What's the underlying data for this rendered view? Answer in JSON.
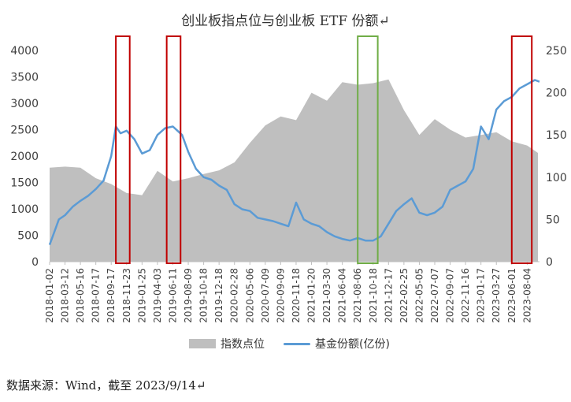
{
  "chart_data": {
    "type": "area+line",
    "title": "创业板指点位与创业板 ETF 份额↵",
    "source_note": "数据来源：Wind，截至 2023/9/14↵",
    "left_axis": {
      "ylim": [
        0,
        4000
      ],
      "ticks": [
        "0",
        "500",
        "1000",
        "1500",
        "2000",
        "2500",
        "3000",
        "3500",
        "4000"
      ]
    },
    "right_axis": {
      "ylim": [
        0,
        250
      ],
      "ticks": [
        "0",
        "50",
        "100",
        "150",
        "200",
        "250"
      ]
    },
    "x_ticks": [
      "2018-01-02",
      "2018-03-12",
      "2018-05-16",
      "2018-07-17",
      "2018-09-17",
      "2018-11-23",
      "2019-01-25",
      "2019-04-03",
      "2019-06-11",
      "2019-08-09",
      "2019-10-18",
      "2019-12-18",
      "2020-02-28",
      "2020-05-06",
      "2020-07-09",
      "2020-09-09",
      "2020-11-18",
      "2021-01-20",
      "2021-03-30",
      "2021-06-04",
      "2021-08-06",
      "2021-10-18",
      "2021-12-17",
      "2022-02-25",
      "2022-05-05",
      "2022-07-07",
      "2022-09-07",
      "2022-11-16",
      "2023-01-17",
      "2023-03-27",
      "2023-06-01",
      "2023-08-04"
    ],
    "series": [
      {
        "name": "指数点位",
        "axis": "left",
        "render": "area",
        "color": "#bfbfbf",
        "x": [
          0,
          1,
          2,
          3,
          4,
          5,
          6,
          7,
          8,
          9,
          10,
          11,
          12,
          13,
          14,
          15,
          16,
          17,
          18,
          19,
          20,
          21,
          22,
          23,
          24,
          25,
          26,
          27,
          28,
          29,
          30,
          31,
          31.7
        ],
        "values": [
          1780,
          1800,
          1780,
          1580,
          1470,
          1300,
          1260,
          1720,
          1520,
          1580,
          1660,
          1730,
          1880,
          2250,
          2580,
          2750,
          2680,
          3200,
          3050,
          3400,
          3350,
          3380,
          3450,
          2870,
          2400,
          2700,
          2500,
          2350,
          2400,
          2450,
          2280,
          2200,
          2060
        ]
      },
      {
        "name": "基金份额(亿份)",
        "axis": "right",
        "render": "line",
        "color": "#5b9bd5",
        "x": [
          0,
          0.3,
          0.6,
          1,
          1.5,
          2,
          2.5,
          3,
          3.5,
          4,
          4.3,
          4.6,
          5,
          5.5,
          6,
          6.5,
          7,
          7.5,
          8,
          8.3,
          8.6,
          9,
          9.5,
          10,
          10.5,
          11,
          11.5,
          12,
          12.5,
          13,
          13.5,
          14,
          14.5,
          15,
          15.5,
          16,
          16.5,
          17,
          17.5,
          18,
          18.5,
          19,
          19.5,
          20,
          20.5,
          21,
          21.5,
          22,
          22.5,
          23,
          23.5,
          24,
          24.5,
          25,
          25.5,
          26,
          26.5,
          27,
          27.5,
          28,
          28.5,
          29,
          29.5,
          30,
          30.5,
          31,
          31.5,
          31.8
        ],
        "values": [
          20,
          35,
          50,
          55,
          65,
          72,
          78,
          86,
          96,
          125,
          160,
          152,
          155,
          145,
          128,
          132,
          150,
          158,
          160,
          155,
          150,
          130,
          110,
          100,
          97,
          90,
          85,
          68,
          62,
          60,
          52,
          50,
          48,
          45,
          42,
          70,
          50,
          45,
          42,
          35,
          30,
          27,
          25,
          28,
          25,
          25,
          30,
          45,
          60,
          68,
          75,
          58,
          55,
          58,
          65,
          85,
          90,
          95,
          110,
          160,
          145,
          180,
          190,
          195,
          205,
          210,
          215,
          213
        ]
      }
    ],
    "highlight_boxes": [
      {
        "x_range": [
          4.3,
          5.2
        ],
        "color": "#c00000"
      },
      {
        "x_range": [
          7.6,
          8.5
        ],
        "color": "#c00000"
      },
      {
        "x_range": [
          20.0,
          21.3
        ],
        "color": "#70ad47"
      },
      {
        "x_range": [
          30.0,
          31.3
        ],
        "color": "#c00000"
      }
    ],
    "legend": {
      "placement": "bottom",
      "entries": [
        "指数点位",
        "基金份额(亿份)"
      ]
    }
  }
}
